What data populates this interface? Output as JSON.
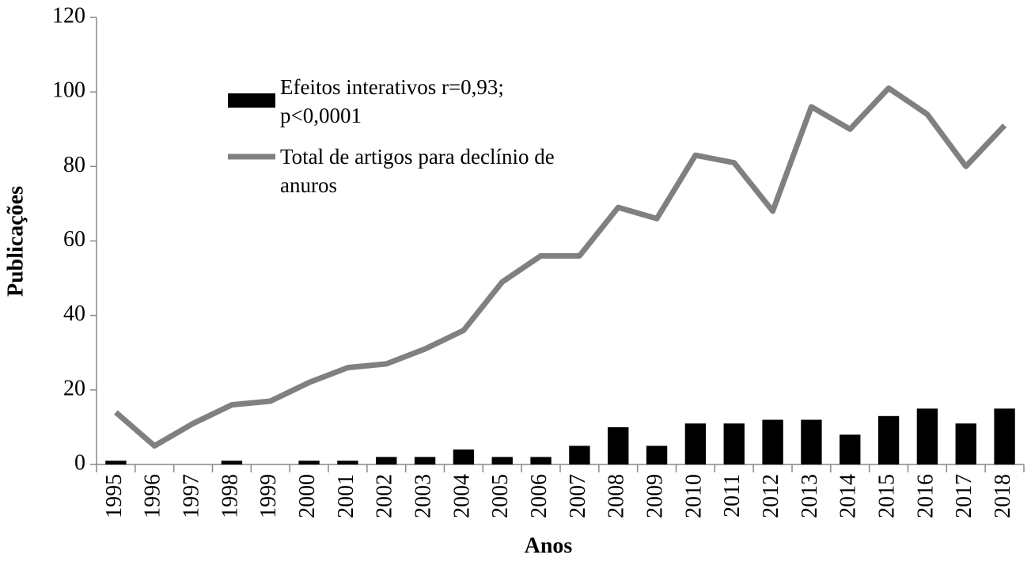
{
  "chart_data": {
    "type": "combo",
    "categories": [
      "1995",
      "1996",
      "1997",
      "1998",
      "1999",
      "2000",
      "2001",
      "2002",
      "2003",
      "2004",
      "2005",
      "2006",
      "2007",
      "2008",
      "2009",
      "2010",
      "2011",
      "2012",
      "2013",
      "2014",
      "2015",
      "2016",
      "2017",
      "2018"
    ],
    "series": [
      {
        "name": "Efeitos interativos r=0,93; p<0,0001",
        "type": "bar",
        "color": "#000000",
        "values": [
          1,
          0,
          0,
          1,
          0,
          1,
          1,
          2,
          2,
          4,
          2,
          2,
          5,
          10,
          5,
          11,
          11,
          12,
          12,
          8,
          13,
          15,
          11,
          15
        ]
      },
      {
        "name": "Total de artigos para declínio de anuros",
        "type": "line",
        "color": "#808080",
        "values": [
          14,
          5,
          11,
          16,
          17,
          22,
          26,
          27,
          31,
          36,
          49,
          56,
          56,
          69,
          66,
          83,
          81,
          68,
          96,
          90,
          101,
          94,
          80,
          91
        ]
      }
    ],
    "xlabel": "Anos",
    "ylabel": "Publicações",
    "ylim": [
      0,
      120
    ],
    "yticks": [
      0,
      20,
      40,
      60,
      80,
      100,
      120
    ],
    "grid": false,
    "legend": "upper left"
  }
}
